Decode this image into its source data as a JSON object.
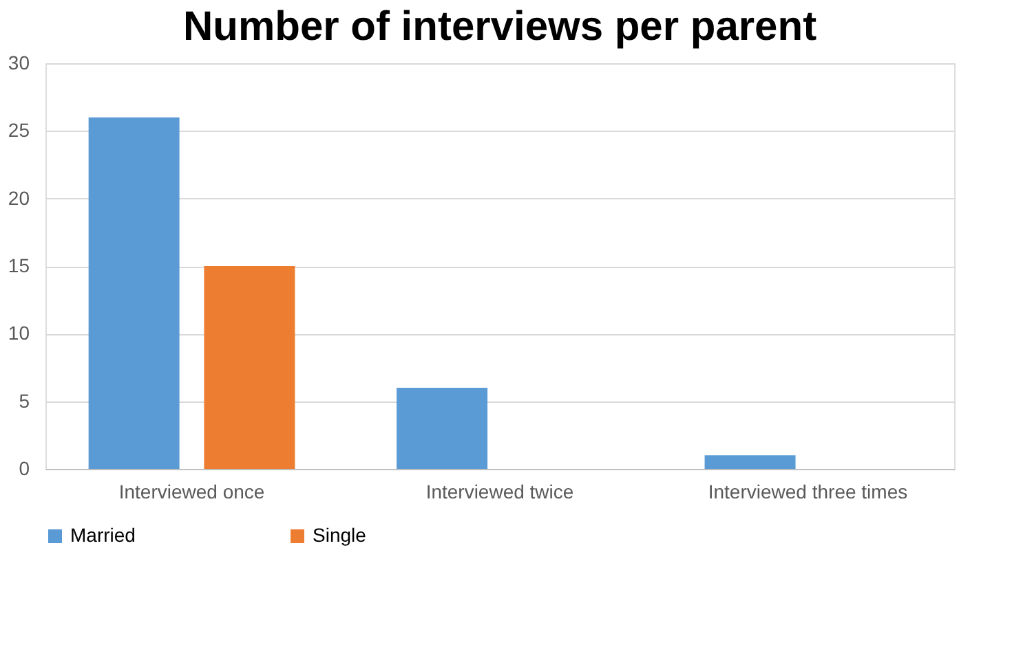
{
  "chart_data": {
    "type": "bar",
    "title": "Number of interviews per parent",
    "categories": [
      "Interviewed once",
      "Interviewed twice",
      "Interviewed three times"
    ],
    "series": [
      {
        "name": "Married",
        "color": "#5b9bd5",
        "values": [
          26,
          6,
          1
        ]
      },
      {
        "name": "Single",
        "color": "#ed7d31",
        "values": [
          15,
          0,
          0
        ]
      }
    ],
    "ylim": [
      0,
      30
    ],
    "yticks": [
      0,
      5,
      10,
      15,
      20,
      25,
      30
    ],
    "grid": "y",
    "legend": "bottom"
  }
}
